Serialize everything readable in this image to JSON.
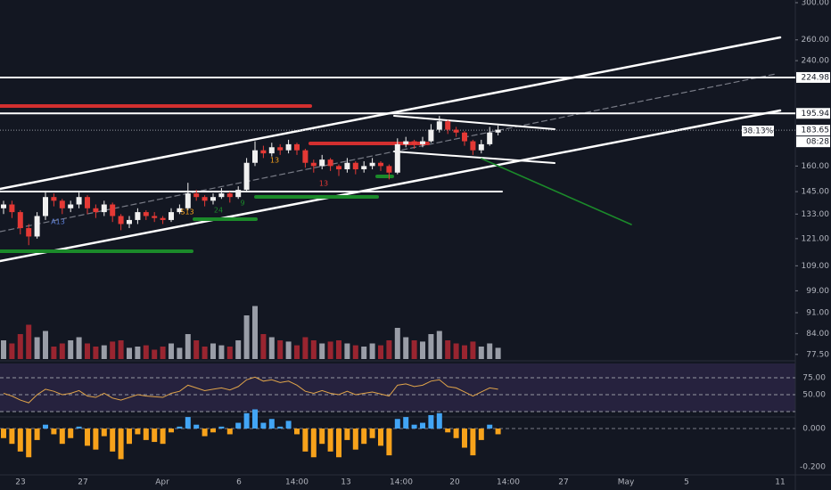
{
  "price_axis": {
    "ticks": [
      {
        "value": 300,
        "label": "300.00"
      },
      {
        "value": 260,
        "label": "260.00"
      },
      {
        "value": 240,
        "label": "240.00"
      },
      {
        "value": 160,
        "label": "160.00"
      },
      {
        "value": 145,
        "label": "145.00"
      },
      {
        "value": 133,
        "label": "133.00"
      },
      {
        "value": 121,
        "label": "121.00"
      },
      {
        "value": 109,
        "label": "109.00"
      },
      {
        "value": 99,
        "label": "99.00"
      },
      {
        "value": 91,
        "label": "91.00"
      },
      {
        "value": 84,
        "label": "84.00"
      },
      {
        "value": 77.5,
        "label": "77.50"
      }
    ]
  },
  "price_markers": [
    {
      "value": 224.98,
      "label": "224.98"
    },
    {
      "value": 195.94,
      "label": "195.94"
    },
    {
      "value": 183.65,
      "label": "183.65"
    }
  ],
  "fib_label": "38.13%",
  "countdown": "08:28",
  "time_axis": {
    "labels": [
      "23",
      "27",
      "Apr",
      "6",
      "14:00",
      "13",
      "14:00",
      "20",
      "14:00",
      "27",
      "May",
      "5",
      "11"
    ]
  },
  "annotations": [
    "A13",
    "S13",
    "13",
    "24",
    "9",
    "13"
  ],
  "candles": [
    [
      136,
      140,
      133,
      138
    ],
    [
      138,
      140,
      131,
      134
    ],
    [
      134,
      135,
      123,
      126
    ],
    [
      126,
      128,
      118,
      122
    ],
    [
      122,
      134,
      121,
      132
    ],
    [
      132,
      145,
      130,
      142
    ],
    [
      142,
      144,
      137,
      140
    ],
    [
      140,
      141,
      133,
      136
    ],
    [
      136,
      140,
      134,
      138
    ],
    [
      138,
      145,
      136,
      142
    ],
    [
      142,
      143,
      133,
      136
    ],
    [
      136,
      138,
      131,
      134
    ],
    [
      134,
      140,
      132,
      138
    ],
    [
      138,
      139,
      129,
      132
    ],
    [
      132,
      133,
      125,
      128
    ],
    [
      128,
      132,
      126,
      130
    ],
    [
      130,
      136,
      128,
      134
    ],
    [
      134,
      135,
      130,
      132
    ],
    [
      132,
      134,
      129,
      131
    ],
    [
      131,
      132,
      128,
      130
    ],
    [
      130,
      136,
      129,
      134
    ],
    [
      134,
      138,
      133,
      136
    ],
    [
      136,
      150,
      135,
      144
    ],
    [
      144,
      146,
      140,
      142
    ],
    [
      142,
      143,
      137,
      140
    ],
    [
      140,
      144,
      138,
      142
    ],
    [
      142,
      147,
      141,
      144
    ],
    [
      144,
      145,
      139,
      142
    ],
    [
      142,
      148,
      141,
      146
    ],
    [
      146,
      165,
      145,
      162
    ],
    [
      162,
      176,
      160,
      170
    ],
    [
      170,
      173,
      165,
      168
    ],
    [
      168,
      175,
      166,
      172
    ],
    [
      172,
      174,
      167,
      170
    ],
    [
      170,
      177,
      168,
      174
    ],
    [
      174,
      175,
      167,
      170
    ],
    [
      170,
      171,
      159,
      162
    ],
    [
      162,
      164,
      156,
      160
    ],
    [
      160,
      167,
      158,
      164
    ],
    [
      164,
      165,
      157,
      160
    ],
    [
      160,
      161,
      154,
      158
    ],
    [
      158,
      165,
      156,
      162
    ],
    [
      162,
      163,
      155,
      158
    ],
    [
      158,
      163,
      156,
      160
    ],
    [
      160,
      165,
      158,
      162
    ],
    [
      162,
      163,
      157,
      160
    ],
    [
      160,
      161,
      152,
      156
    ],
    [
      156,
      178,
      155,
      174
    ],
    [
      174,
      179,
      172,
      176
    ],
    [
      176,
      177,
      171,
      174
    ],
    [
      174,
      179,
      172,
      176
    ],
    [
      176,
      188,
      175,
      184
    ],
    [
      184,
      194,
      182,
      190
    ],
    [
      190,
      191,
      181,
      184
    ],
    [
      184,
      186,
      179,
      182
    ],
    [
      182,
      183,
      173,
      176
    ],
    [
      176,
      177,
      167,
      170
    ],
    [
      170,
      177,
      168,
      174
    ],
    [
      174,
      186,
      173,
      182
    ],
    [
      182,
      187,
      180,
      184
    ]
  ],
  "volume": [
    30,
    25,
    40,
    55,
    35,
    45,
    20,
    25,
    30,
    35,
    25,
    20,
    22,
    28,
    30,
    18,
    20,
    22,
    15,
    20,
    25,
    18,
    40,
    30,
    20,
    25,
    22,
    20,
    30,
    70,
    85,
    40,
    35,
    30,
    28,
    22,
    35,
    30,
    25,
    28,
    30,
    25,
    22,
    20,
    25,
    22,
    30,
    50,
    35,
    30,
    28,
    40,
    45,
    30,
    25,
    22,
    28,
    20,
    25,
    18
  ],
  "rsi": {
    "ticks": [
      {
        "value": 75,
        "label": "75.00"
      },
      {
        "value": 50,
        "label": "50.00"
      }
    ],
    "values": [
      52,
      48,
      42,
      38,
      50,
      58,
      55,
      50,
      52,
      56,
      48,
      46,
      52,
      45,
      42,
      46,
      50,
      48,
      47,
      46,
      52,
      55,
      64,
      60,
      56,
      58,
      60,
      57,
      62,
      72,
      76,
      70,
      72,
      68,
      70,
      64,
      55,
      52,
      56,
      52,
      50,
      55,
      50,
      52,
      54,
      51,
      48,
      64,
      66,
      62,
      64,
      70,
      72,
      62,
      60,
      54,
      48,
      54,
      60,
      58
    ]
  },
  "macd": {
    "ticks": [
      {
        "value": 0,
        "label": "0.000"
      },
      {
        "value": -0.2,
        "label": "-0.200"
      }
    ],
    "histogram": [
      -0.05,
      -0.08,
      -0.12,
      -0.15,
      -0.06,
      0.02,
      -0.03,
      -0.08,
      -0.05,
      0.01,
      -0.09,
      -0.11,
      -0.04,
      -0.12,
      -0.16,
      -0.08,
      -0.03,
      -0.06,
      -0.07,
      -0.08,
      -0.02,
      0.01,
      0.06,
      0.02,
      -0.04,
      -0.02,
      0.01,
      -0.03,
      0.03,
      0.08,
      0.1,
      0.03,
      0.05,
      0.01,
      0.04,
      -0.03,
      -0.12,
      -0.15,
      -0.08,
      -0.12,
      -0.15,
      -0.06,
      -0.11,
      -0.08,
      -0.05,
      -0.09,
      -0.14,
      0.05,
      0.06,
      0.02,
      0.03,
      0.07,
      0.08,
      -0.02,
      -0.05,
      -0.1,
      -0.14,
      -0.06,
      0.02,
      -0.03
    ]
  }
}
